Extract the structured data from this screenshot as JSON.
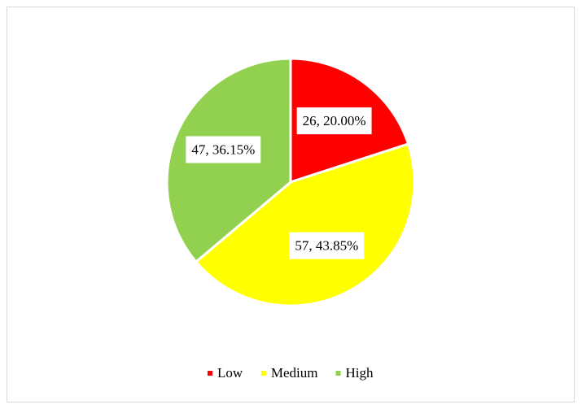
{
  "chart_data": {
    "type": "pie",
    "categories": [
      "Low",
      "Medium",
      "High"
    ],
    "values": [
      26,
      57,
      47
    ],
    "value_labels": [
      "26, 20.00%",
      "57, 43.85%",
      "47, 36.15%"
    ],
    "colors": [
      "#ff0000",
      "#ffff00",
      "#92d050"
    ],
    "legend": "bottom"
  }
}
